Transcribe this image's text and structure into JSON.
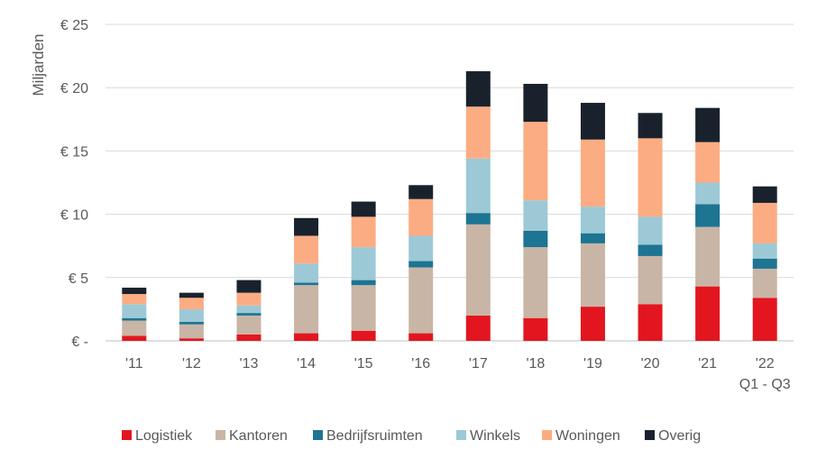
{
  "chart_data": {
    "type": "bar",
    "stacked": true,
    "categories": [
      "'11",
      "'12",
      "'13",
      "'14",
      "'15",
      "'16",
      "'17",
      "'18",
      "'19",
      "'20",
      "'21",
      "'22"
    ],
    "category_sublabels": [
      "",
      "",
      "",
      "",
      "",
      "",
      "",
      "",
      "",
      "",
      "",
      "Q1 - Q3"
    ],
    "ylabel": "Miljarden",
    "ylim": [
      0,
      25
    ],
    "yticks": [
      0,
      5,
      10,
      15,
      20,
      25
    ],
    "ytick_labels": [
      "€ -",
      "€ 5",
      "€ 10",
      "€ 15",
      "€ 20",
      "€ 25"
    ],
    "grid": true,
    "legend_position": "bottom",
    "series": [
      {
        "name": "Logistiek",
        "color": "#e3161f",
        "values": [
          0.4,
          0.2,
          0.5,
          0.6,
          0.8,
          0.6,
          2.0,
          1.8,
          2.7,
          2.9,
          4.3,
          3.4
        ]
      },
      {
        "name": "Kantoren",
        "color": "#c9b5a5",
        "values": [
          1.2,
          1.1,
          1.5,
          3.8,
          3.6,
          5.2,
          7.2,
          5.6,
          5.0,
          3.8,
          4.7,
          2.3
        ]
      },
      {
        "name": "Bedrijfsruimten",
        "color": "#1d7493",
        "values": [
          0.2,
          0.2,
          0.2,
          0.2,
          0.4,
          0.5,
          0.9,
          1.3,
          0.8,
          0.9,
          1.8,
          0.8
        ]
      },
      {
        "name": "Winkels",
        "color": "#9cc9d5",
        "values": [
          1.1,
          1.0,
          0.6,
          1.5,
          2.6,
          2.0,
          4.3,
          2.4,
          2.1,
          2.2,
          1.7,
          1.2
        ]
      },
      {
        "name": "Woningen",
        "color": "#fcac82",
        "values": [
          0.8,
          0.9,
          1.0,
          2.2,
          2.4,
          2.9,
          4.1,
          6.2,
          5.3,
          6.2,
          3.2,
          3.2
        ]
      },
      {
        "name": "Overig",
        "color": "#19222c",
        "values": [
          0.5,
          0.4,
          1.0,
          1.4,
          1.2,
          1.1,
          2.8,
          3.0,
          2.9,
          2.0,
          2.7,
          1.3
        ]
      }
    ]
  }
}
